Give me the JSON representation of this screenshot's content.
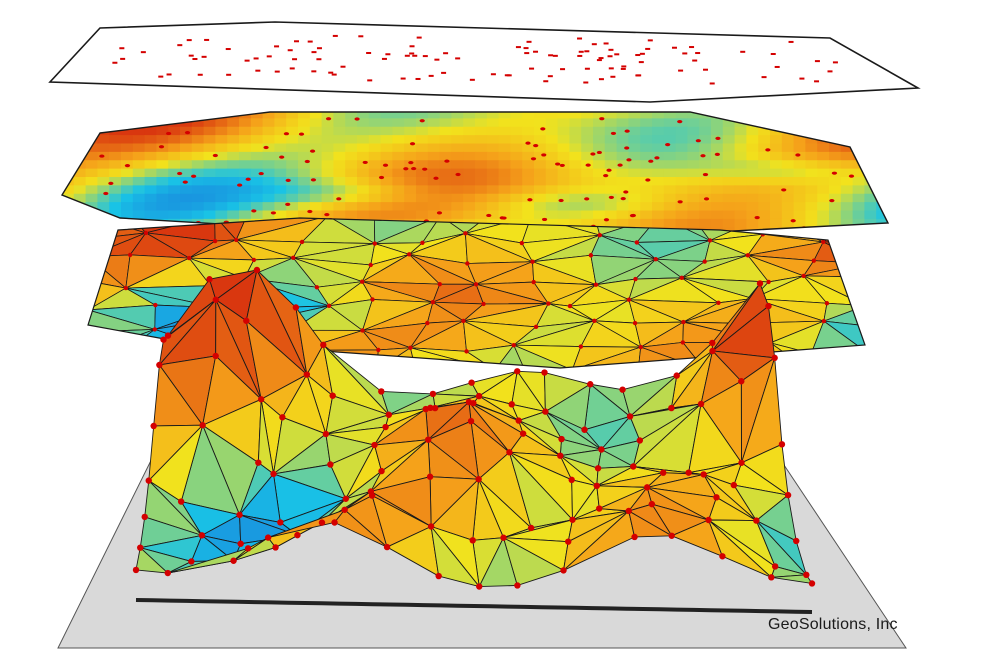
{
  "credit": "GeoSolutions, Inc",
  "colors": {
    "background": "#ffffff",
    "point": "#d40000",
    "edge": "#1a1a1a",
    "base_plane": "#d9d9d9",
    "low": "#1a4fd6",
    "mid_low": "#19c3e6",
    "mid": "#f2e21c",
    "mid_high": "#f5a11a",
    "high": "#d9370f"
  },
  "layers": [
    {
      "name": "scattered-points",
      "style": "outline-with-points"
    },
    {
      "name": "interpolated-surface",
      "style": "smooth-color-fill"
    },
    {
      "name": "triangulated-surface",
      "style": "tin-with-colors"
    },
    {
      "name": "3d-relief",
      "style": "extruded-tin"
    }
  ]
}
